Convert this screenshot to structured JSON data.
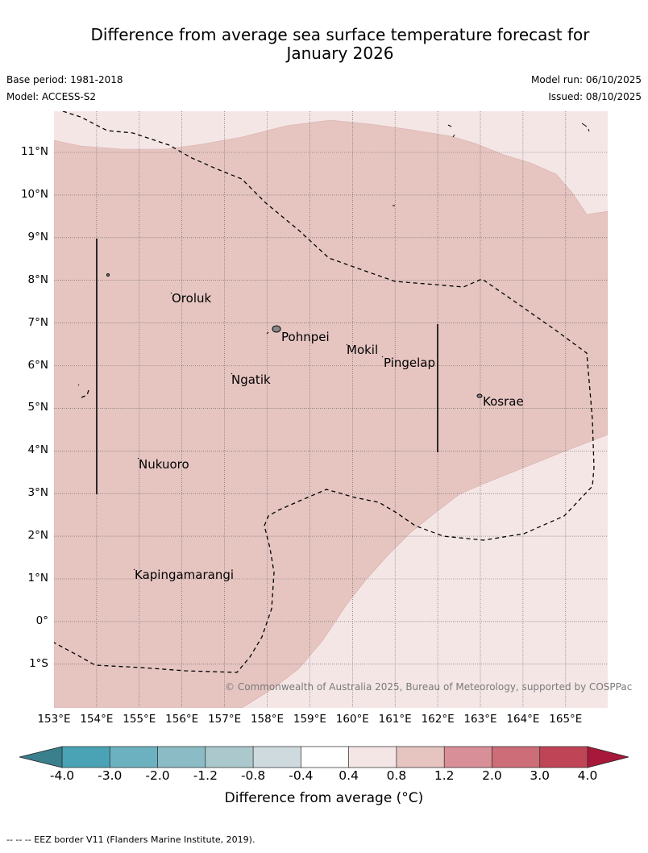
{
  "title_line1": "Difference from average sea surface temperature forecast for",
  "title_line2": "January 2026",
  "base_period": "Base period: 1981-2018",
  "model": "Model: ACCESS-S2",
  "model_run": "Model run: 06/10/2025",
  "issued": "Issued: 08/10/2025",
  "lat_labels": [
    "11°N",
    "10°N",
    "9°N",
    "8°N",
    "7°N",
    "6°N",
    "5°N",
    "4°N",
    "3°N",
    "2°N",
    "1°N",
    "0°",
    "1°S"
  ],
  "lon_labels": [
    "153°E",
    "154°E",
    "155°E",
    "156°E",
    "157°E",
    "158°E",
    "159°E",
    "160°E",
    "161°E",
    "162°E",
    "163°E",
    "164°E",
    "165°E"
  ],
  "places": {
    "oroluk": "Oroluk",
    "pohnpei": "Pohnpei",
    "mokil": "Mokil",
    "pingelap": "Pingelap",
    "ngatik": "Ngatik",
    "kosrae": "Kosrae",
    "nukuoro": "Nukuoro",
    "kapingamarangi": "Kapingamarangi"
  },
  "copyright": "© Commonwealth of Australia 2025, Bureau of Meteorology, supported by COSPPac",
  "colorbar": {
    "ticks": [
      "-4.0",
      "-3.0",
      "-2.0",
      "-1.2",
      "-0.8",
      "-0.4",
      "0.4",
      "0.8",
      "1.2",
      "2.0",
      "3.0",
      "4.0"
    ],
    "colors": [
      "#4aa3b4",
      "#6cb1c0",
      "#8bbcc6",
      "#abc9cc",
      "#cfdadf",
      "#ffffff",
      "#f5e6e6",
      "#e6c5c1",
      "#d98f98",
      "#cc6d77",
      "#bf4556"
    ],
    "low_extend_color": "#3a7f8c",
    "high_extend_color": "#a8183a",
    "label": "Difference from average (°C)"
  },
  "fill_colors": {
    "light": "#f5e6e6",
    "medium": "#e6c5c1"
  },
  "footnote": "--  --  -- EEZ border V11 (Flanders Marine Institute, 2019)."
}
